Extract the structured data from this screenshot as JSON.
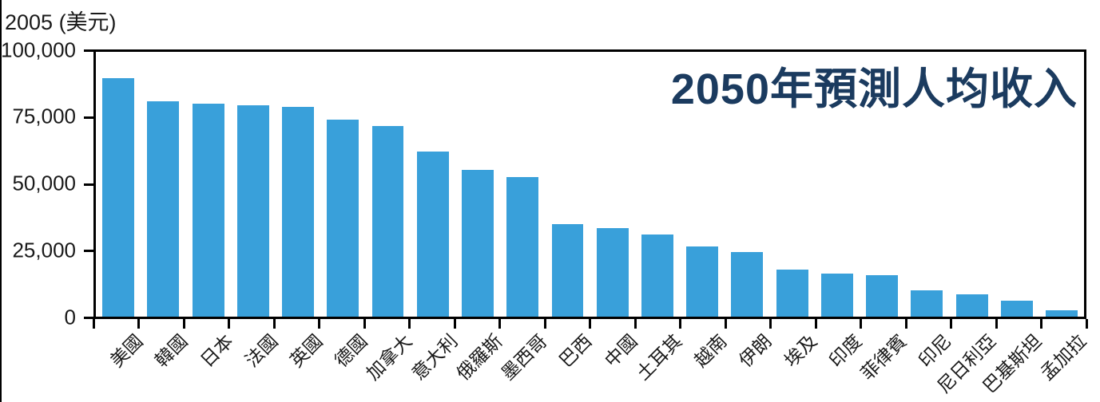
{
  "chart_data": {
    "type": "bar",
    "title": "2050年預測人均收入",
    "unit_label": "2005 (美元)",
    "categories": [
      "美國",
      "韓國",
      "日本",
      "法國",
      "英國",
      "德國",
      "加拿大",
      "意大利",
      "俄羅斯",
      "墨西哥",
      "巴西",
      "中國",
      "土耳其",
      "越南",
      "伊朗",
      "埃及",
      "印度",
      "菲律賓",
      "印尼",
      "尼日利亞",
      "巴基斯坦",
      "孟加拉"
    ],
    "values": [
      90000,
      81400,
      80400,
      79900,
      79300,
      74500,
      72100,
      62400,
      55300,
      52700,
      35000,
      33400,
      30900,
      26500,
      24500,
      17800,
      16300,
      15700,
      10000,
      8400,
      6000,
      2500
    ],
    "ylim": [
      0,
      100000
    ],
    "yticks": [
      0,
      25000,
      50000,
      75000,
      100000
    ],
    "ytick_labels": [
      "0",
      "25,000",
      "50,000",
      "75,000",
      "100,000"
    ],
    "grid": false,
    "legend": "none",
    "x_label_rotation_deg": -45,
    "bar_color": "#39A0DA",
    "title_color": "#1B3B5F",
    "axis_color": "#000000"
  }
}
